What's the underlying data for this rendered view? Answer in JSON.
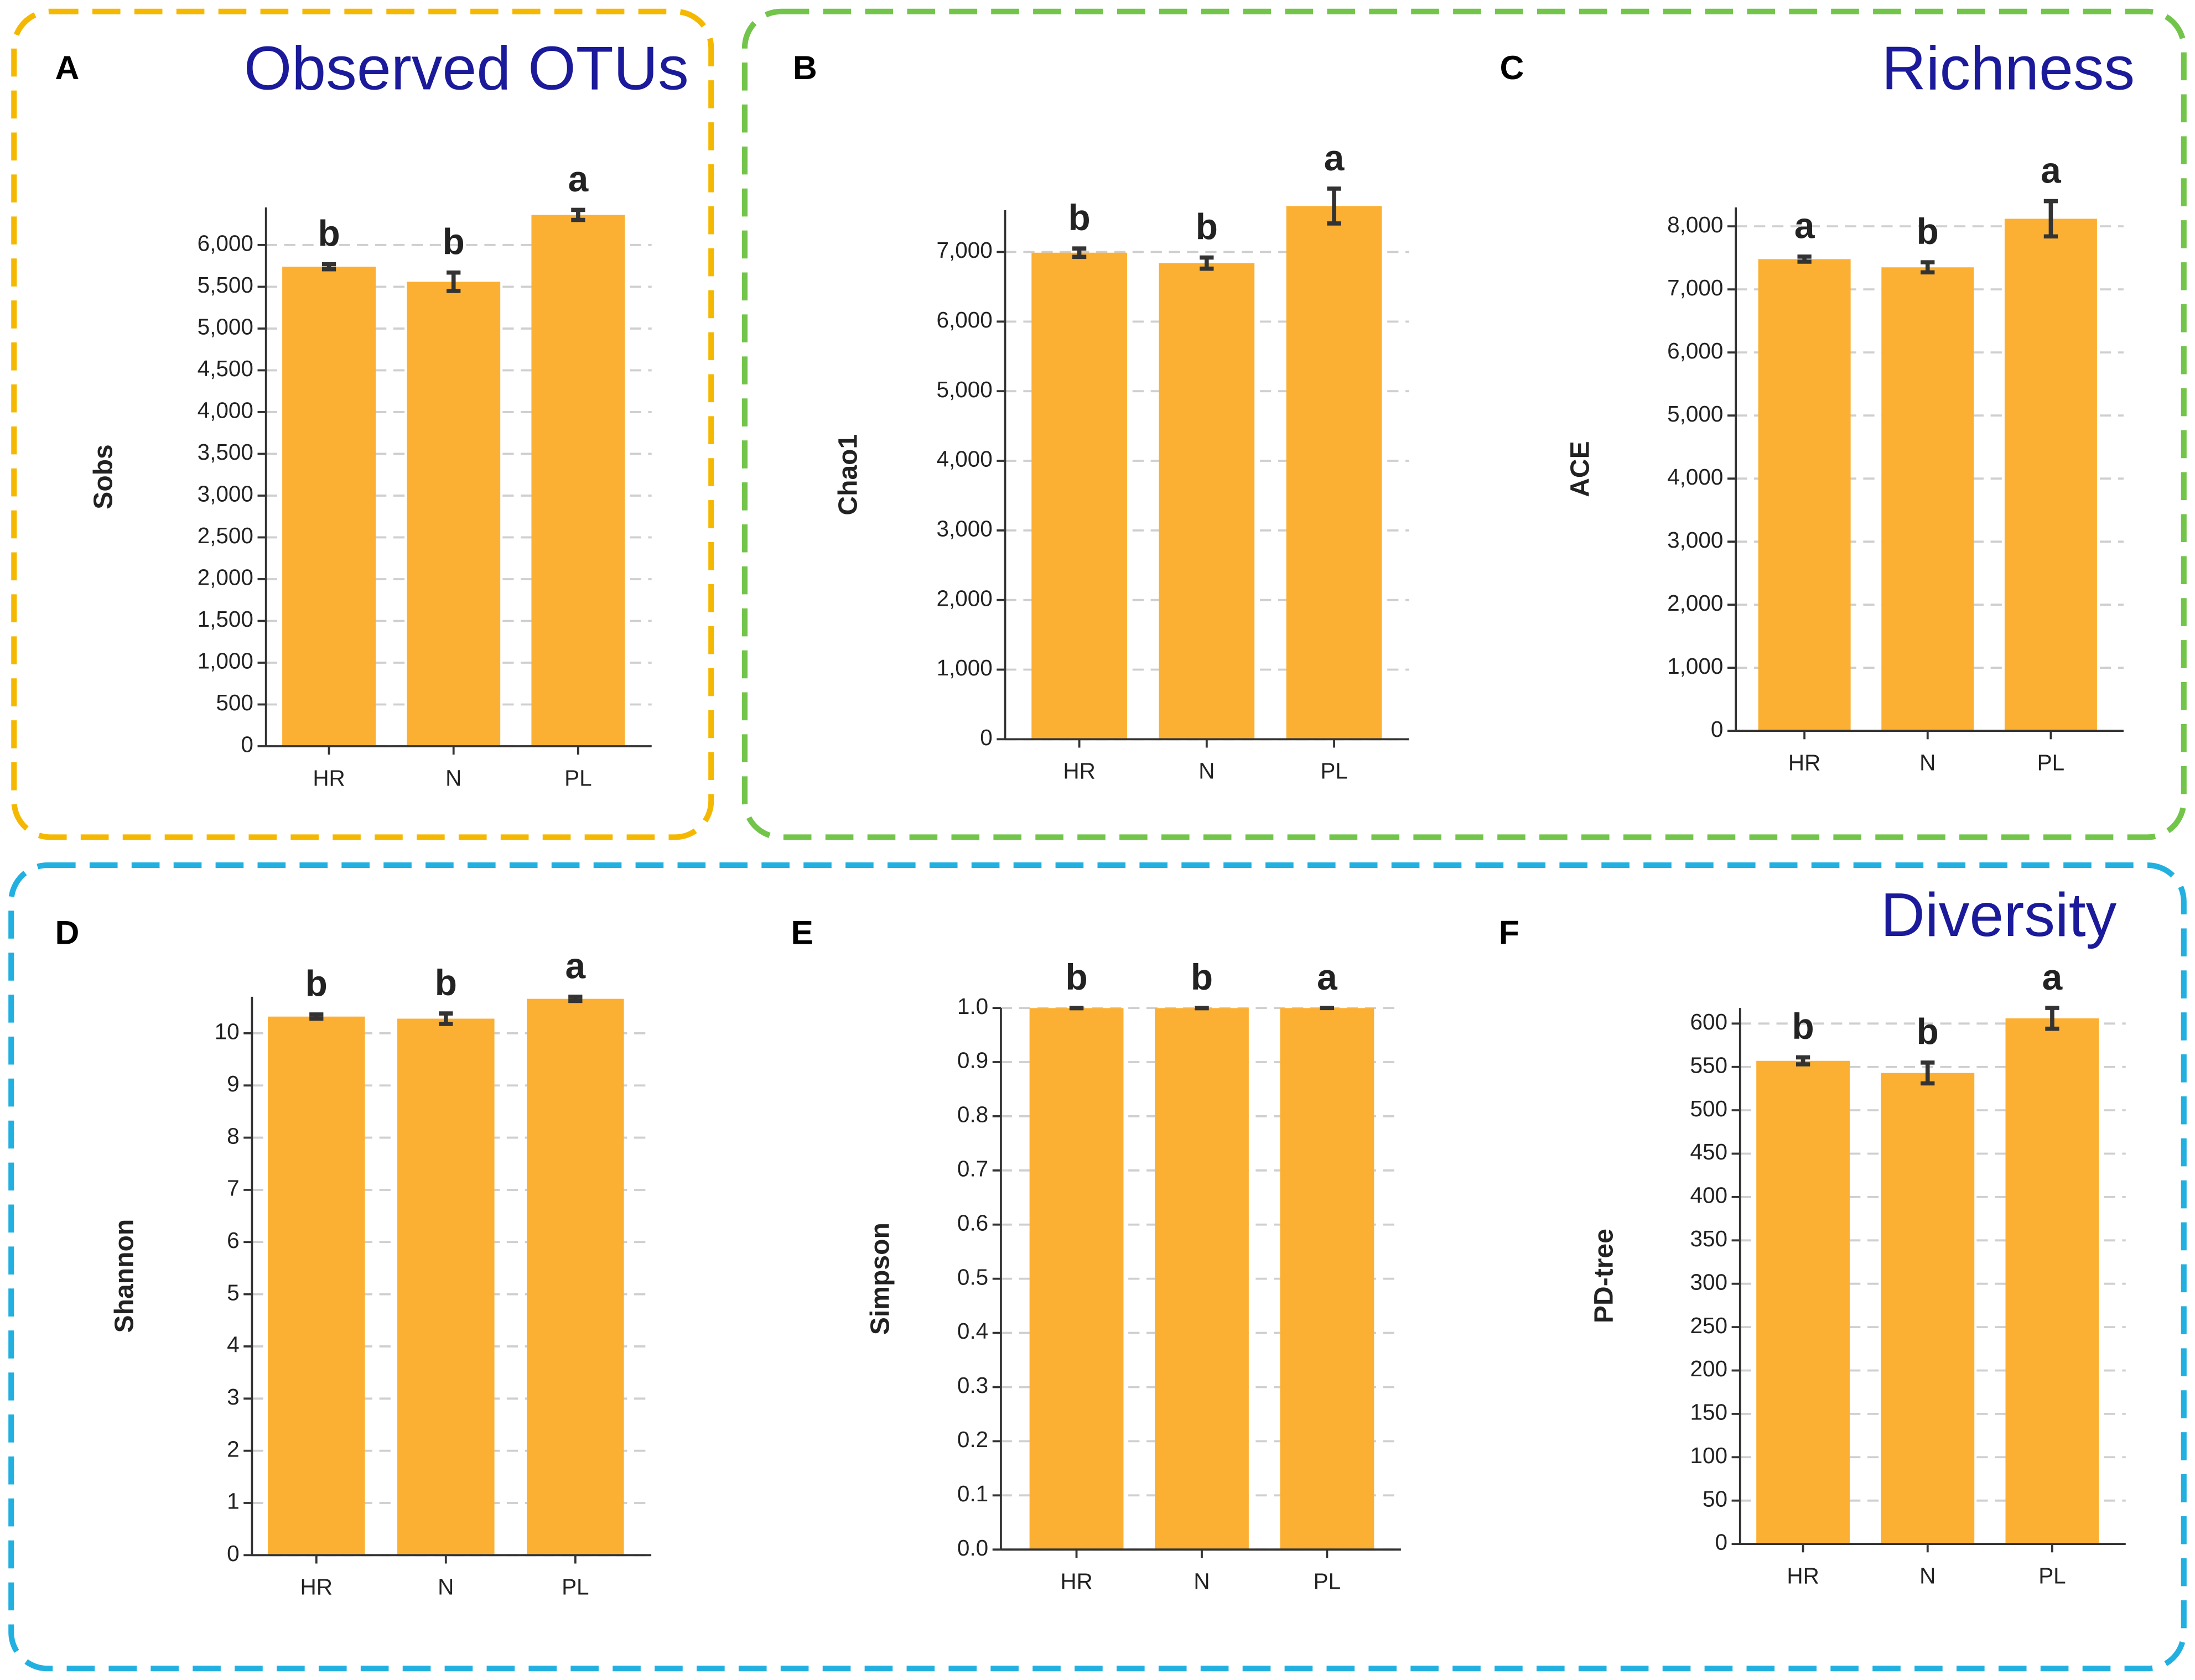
{
  "group_titles": [
    "Observed OTUs",
    "Richness",
    "Diversity"
  ],
  "chart_data": [
    {
      "type": "bar",
      "panel": "A",
      "ylabel": "Sobs",
      "categories": [
        "HR",
        "N",
        "PL"
      ],
      "values": [
        5740,
        5560,
        6360
      ],
      "errors": [
        30,
        110,
        60
      ],
      "letters": [
        "b",
        "b",
        "a"
      ],
      "color": "#fbb034",
      "ylim": [
        0,
        6450
      ],
      "yticks": [
        0,
        500,
        {
          "value": 1000,
          "label": "1,000"
        },
        {
          "value": 1500,
          "label": "1,500"
        },
        {
          "value": 2000,
          "label": "2,000"
        },
        {
          "value": 2500,
          "label": "2,500"
        },
        {
          "value": 3000,
          "label": "3,000"
        },
        {
          "value": 3500,
          "label": "3,500"
        },
        {
          "value": 4000,
          "label": "4,000"
        },
        {
          "value": 4500,
          "label": "4,500"
        },
        {
          "value": 5000,
          "label": "5,000"
        },
        {
          "value": 5500,
          "label": "5,500"
        },
        {
          "value": 6000,
          "label": "6,000"
        }
      ],
      "grid": true
    },
    {
      "type": "bar",
      "panel": "B",
      "ylabel": "Chao1",
      "categories": [
        "HR",
        "N",
        "PL"
      ],
      "values": [
        6990,
        6840,
        7660
      ],
      "errors": [
        60,
        80,
        250
      ],
      "letters": [
        "b",
        "b",
        "a"
      ],
      "color": "#fbb034",
      "ylim": [
        0,
        7600
      ],
      "yticks": [
        0,
        {
          "value": 1000,
          "label": "1,000"
        },
        {
          "value": 2000,
          "label": "2,000"
        },
        {
          "value": 3000,
          "label": "3,000"
        },
        {
          "value": 4000,
          "label": "4,000"
        },
        {
          "value": 5000,
          "label": "5,000"
        },
        {
          "value": 6000,
          "label": "6,000"
        },
        {
          "value": 7000,
          "label": "7,000"
        }
      ],
      "grid": true
    },
    {
      "type": "bar",
      "panel": "C",
      "ylabel": "ACE",
      "categories": [
        "HR",
        "N",
        "PL"
      ],
      "values": [
        7480,
        7350,
        8120
      ],
      "errors": [
        40,
        80,
        280
      ],
      "letters": [
        "a",
        "b",
        "a"
      ],
      "color": "#fbb034",
      "ylim": [
        0,
        8300
      ],
      "yticks": [
        0,
        {
          "value": 1000,
          "label": "1,000"
        },
        {
          "value": 2000,
          "label": "2,000"
        },
        {
          "value": 3000,
          "label": "3,000"
        },
        {
          "value": 4000,
          "label": "4,000"
        },
        {
          "value": 5000,
          "label": "5,000"
        },
        {
          "value": 6000,
          "label": "6,000"
        },
        {
          "value": 7000,
          "label": "7,000"
        },
        {
          "value": 8000,
          "label": "8,000"
        }
      ],
      "grid": true
    },
    {
      "type": "bar",
      "panel": "D",
      "ylabel": "Shannon",
      "categories": [
        "HR",
        "N",
        "PL"
      ],
      "values": [
        10.32,
        10.28,
        10.66
      ],
      "errors": [
        0.04,
        0.1,
        0.04
      ],
      "letters": [
        "b",
        "b",
        "a"
      ],
      "color": "#fbb034",
      "ylim": [
        0,
        10.7
      ],
      "yticks": [
        0,
        1,
        2,
        3,
        4,
        5,
        6,
        7,
        8,
        9,
        10
      ],
      "grid": true
    },
    {
      "type": "bar",
      "panel": "E",
      "ylabel": "Simpson",
      "categories": [
        "HR",
        "N",
        "PL"
      ],
      "values": [
        0.9997,
        0.9997,
        0.9998
      ],
      "errors": [
        0.0002,
        0.0002,
        0.0001
      ],
      "letters": [
        "b",
        "b",
        "a"
      ],
      "color": "#fbb034",
      "ylim": [
        0,
        1.0
      ],
      "yticks": [
        {
          "value": 0,
          "label": "0.0"
        },
        0.1,
        0.2,
        0.3,
        0.4,
        0.5,
        0.6,
        0.7,
        0.8,
        0.9,
        {
          "value": 1,
          "label": "1.0"
        }
      ],
      "grid": true
    },
    {
      "type": "bar",
      "panel": "F",
      "ylabel": "PD-tree",
      "categories": [
        "HR",
        "N",
        "PL"
      ],
      "values": [
        557,
        543,
        606
      ],
      "errors": [
        4,
        12,
        12
      ],
      "letters": [
        "b",
        "b",
        "a"
      ],
      "color": "#fbb034",
      "ylim": [
        0,
        618
      ],
      "yticks": [
        0,
        50,
        100,
        150,
        200,
        250,
        300,
        350,
        400,
        450,
        500,
        550,
        600
      ],
      "grid": true
    }
  ]
}
